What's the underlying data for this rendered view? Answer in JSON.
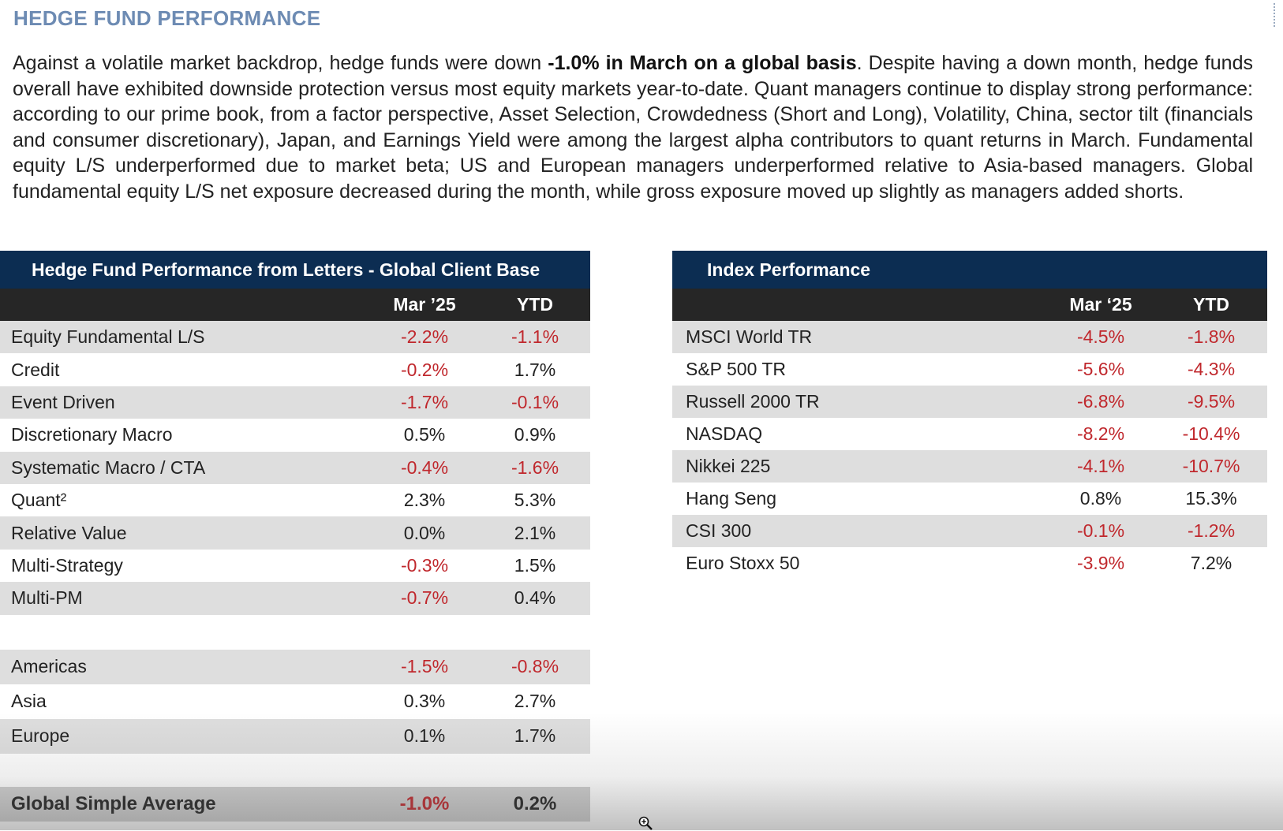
{
  "page": {
    "title": "HEDGE FUND PERFORMANCE",
    "intro_before": "Against a volatile market backdrop, hedge funds were down ",
    "intro_bold": "-1.0% in March on a global basis",
    "intro_after": ". Despite having a down month, hedge funds overall have exhibited downside protection versus most equity markets year-to-date. Quant managers continue to display strong performance: according to our prime book, from a factor perspective, Asset Selection, Crowdedness (Short and Long), Volatility, China, sector tilt (financials and consumer discretionary), Japan, and Earnings Yield were among the largest alpha contributors to quant returns in March. Fundamental equity L/S underperformed due to market beta; US and European managers underperformed relative to Asia-based managers. Global fundamental equity L/S net exposure decreased during the month, while gross exposure moved up slightly as managers added shorts."
  },
  "colors": {
    "title_blue": "#6d8bb3",
    "header_navy": "#0c2d52",
    "header_dark": "#262626",
    "row_shade": "#dedede",
    "negative_red": "#c0282d"
  },
  "hf_table": {
    "title": "Hedge Fund Performance from Letters - Global Client Base",
    "col_mar": "Mar ’25",
    "col_ytd": "YTD",
    "strategies": [
      {
        "label": "Equity Fundamental L/S",
        "mar": "-2.2%",
        "ytd": "-1.1%"
      },
      {
        "label": "Credit",
        "mar": "-0.2%",
        "ytd": "1.7%"
      },
      {
        "label": "Event Driven",
        "mar": "-1.7%",
        "ytd": "-0.1%"
      },
      {
        "label": "Discretionary Macro",
        "mar": "0.5%",
        "ytd": "0.9%"
      },
      {
        "label": "Systematic Macro / CTA",
        "mar": "-0.4%",
        "ytd": "-1.6%"
      },
      {
        "label": "Quant²",
        "mar": "2.3%",
        "ytd": "5.3%"
      },
      {
        "label": "Relative Value",
        "mar": "0.0%",
        "ytd": "2.1%"
      },
      {
        "label": "Multi-Strategy",
        "mar": "-0.3%",
        "ytd": "1.5%"
      },
      {
        "label": "Multi-PM",
        "mar": "-0.7%",
        "ytd": "0.4%"
      }
    ],
    "regions": [
      {
        "label": "Americas",
        "mar": "-1.5%",
        "ytd": "-0.8%"
      },
      {
        "label": "Asia",
        "mar": "0.3%",
        "ytd": "2.7%"
      },
      {
        "label": "Europe",
        "mar": "0.1%",
        "ytd": "1.7%"
      }
    ],
    "summary": {
      "label": "Global Simple Average",
      "mar": "-1.0%",
      "ytd": "0.2%"
    }
  },
  "index_table": {
    "title": "Index Performance",
    "col_mar": "Mar ‘25",
    "col_ytd": "YTD",
    "rows": [
      {
        "label": "MSCI World TR",
        "mar": "-4.5%",
        "ytd": "-1.8%"
      },
      {
        "label": "S&P 500 TR",
        "mar": "-5.6%",
        "ytd": "-4.3%"
      },
      {
        "label": "Russell 2000 TR",
        "mar": "-6.8%",
        "ytd": "-9.5%"
      },
      {
        "label": "NASDAQ",
        "mar": "-8.2%",
        "ytd": "-10.4%"
      },
      {
        "label": "Nikkei 225",
        "mar": "-4.1%",
        "ytd": "-10.7%"
      },
      {
        "label": "Hang Seng",
        "mar": "0.8%",
        "ytd": "15.3%"
      },
      {
        "label": "CSI 300",
        "mar": "-0.1%",
        "ytd": "-1.2%"
      },
      {
        "label": "Euro Stoxx 50",
        "mar": "-3.9%",
        "ytd": "7.2%"
      }
    ]
  }
}
